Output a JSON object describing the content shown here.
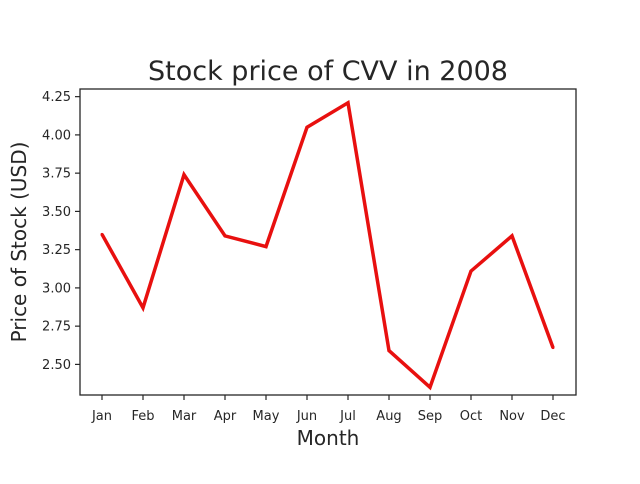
{
  "chart_data": {
    "type": "line",
    "title": "Stock price of CVV in 2008",
    "xlabel": "Month",
    "ylabel": "Price of Stock (USD)",
    "categories": [
      "Jan",
      "Feb",
      "Mar",
      "Apr",
      "May",
      "Jun",
      "Jul",
      "Aug",
      "Sep",
      "Oct",
      "Nov",
      "Dec"
    ],
    "series": [
      {
        "values": [
          3.35,
          2.87,
          3.74,
          3.34,
          3.27,
          4.05,
          4.21,
          2.59,
          2.35,
          3.11,
          3.34,
          2.61
        ],
        "color": "#e8100f"
      }
    ],
    "y_ticks": [
      "2.50",
      "2.75",
      "3.00",
      "3.25",
      "3.50",
      "3.75",
      "4.00",
      "4.25"
    ],
    "ylim": [
      2.3,
      4.3
    ],
    "grid": false,
    "legend": "none"
  }
}
